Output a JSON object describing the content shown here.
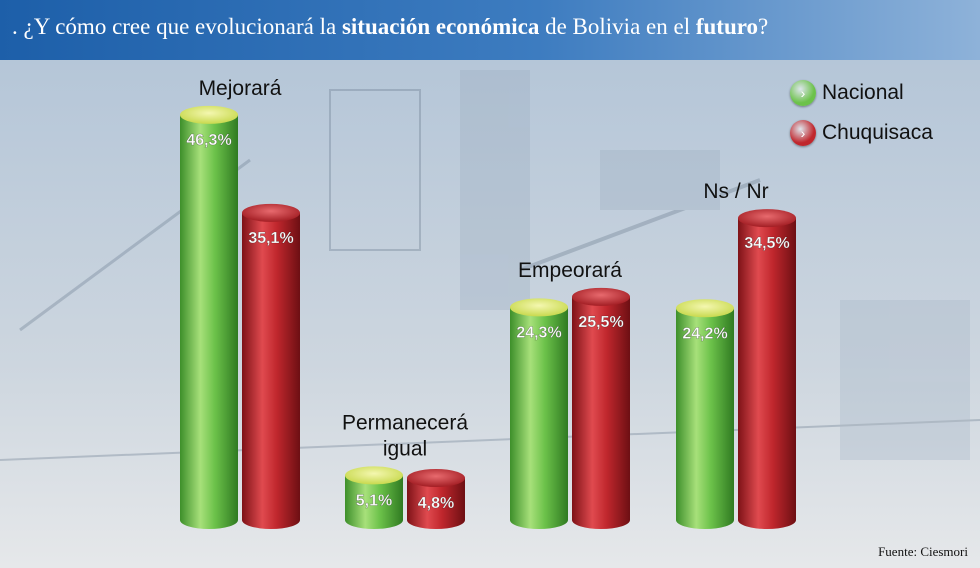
{
  "title": {
    "prefix": ". ¿Y cómo cree que evolucionará la ",
    "bold1": "situación económica",
    "middle": " de Bolivia en el ",
    "bold2": "futuro",
    "suffix": "?"
  },
  "source": "Fuente: Ciesmori",
  "colors": {
    "nacional": "#6cc24a",
    "chuquisaca": "#c0272d",
    "accent": "#2a6db5"
  },
  "legend": [
    {
      "name": "Nacional",
      "color": "#6cc24a",
      "icon": "chevron-right-icon"
    },
    {
      "name": "Chuquisaca",
      "color": "#c0272d",
      "icon": "chevron-right-icon"
    }
  ],
  "chart_data": {
    "type": "bar",
    "categories": [
      "Mejorará",
      "Permanecerá igual",
      "Empeorará",
      "Ns / Nr"
    ],
    "series": [
      {
        "name": "Nacional",
        "values": [
          46.3,
          5.1,
          24.3,
          24.2
        ],
        "labels": [
          "46,3%",
          "5,1%",
          "24,3%",
          "24,2%"
        ]
      },
      {
        "name": "Chuquisaca",
        "values": [
          35.1,
          4.8,
          25.5,
          34.5
        ],
        "labels": [
          "35,1%",
          "4,8%",
          "25,5%",
          "34,5%"
        ]
      }
    ],
    "ylim": [
      0,
      50
    ],
    "grid": false,
    "legend_position": "top-right"
  }
}
